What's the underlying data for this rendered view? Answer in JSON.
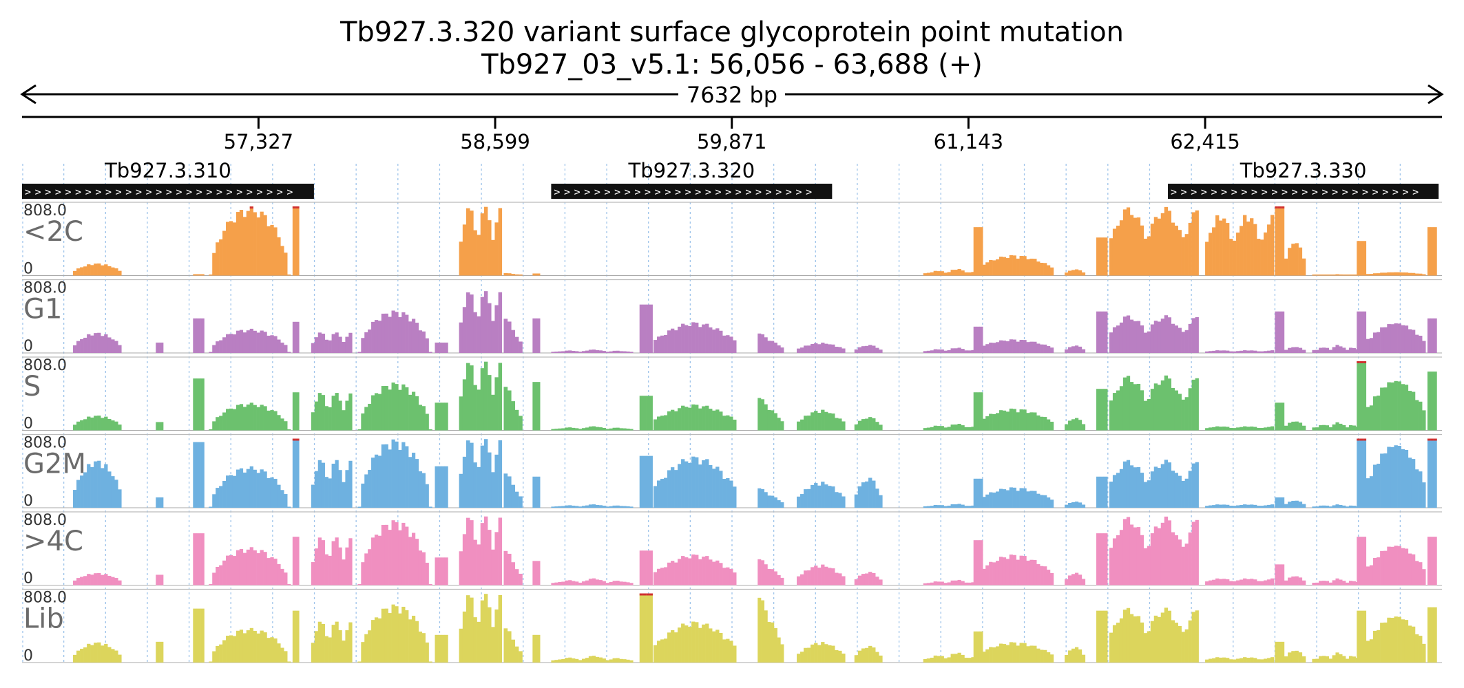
{
  "title": {
    "line1": "Tb927.3.320  variant surface glycoprotein  point mutation",
    "line2": "Tb927_03_v5.1: 56,056 - 63,688 (+)"
  },
  "span_label": "7632 bp",
  "chart_data": {
    "type": "area",
    "region": {
      "chromosome": "Tb927_03_v5.1",
      "start": 56056,
      "end": 63688,
      "strand": "+"
    },
    "x_ticks": [
      {
        "pos": 57327,
        "label": "57,327"
      },
      {
        "pos": 58599,
        "label": "58,599"
      },
      {
        "pos": 59871,
        "label": "59,871"
      },
      {
        "pos": 61143,
        "label": "61,143"
      },
      {
        "pos": 62415,
        "label": "62,415"
      }
    ],
    "genes": [
      {
        "name": "Tb927.3.310",
        "start": 56056,
        "end": 57625,
        "strand": "+"
      },
      {
        "name": "Tb927.3.320",
        "start": 58900,
        "end": 60410,
        "strand": "+"
      },
      {
        "name": "Tb927.3.330",
        "start": 62215,
        "end": 63670,
        "strand": "+"
      }
    ],
    "ylim": [
      0,
      808
    ],
    "ymax_label": "808.0",
    "ymin_label": "0",
    "grid": true,
    "segments": [
      {
        "start": 56330,
        "end": 56590,
        "shape": "mound"
      },
      {
        "start": 56775,
        "end": 56815,
        "shape": "flat"
      },
      {
        "start": 56975,
        "end": 57035,
        "shape": "flat"
      },
      {
        "start": 57060,
        "end": 57500,
        "shape": "peak"
      },
      {
        "start": 57510,
        "end": 57545,
        "shape": "flat"
      },
      {
        "start": 57610,
        "end": 57830,
        "shape": "bumps"
      },
      {
        "start": 57860,
        "end": 58260,
        "shape": "peak"
      },
      {
        "start": 58275,
        "end": 58345,
        "shape": "flat"
      },
      {
        "start": 58405,
        "end": 58635,
        "shape": "bumps"
      },
      {
        "start": 58645,
        "end": 58745,
        "shape": "decay"
      },
      {
        "start": 58800,
        "end": 58840,
        "shape": "flat"
      },
      {
        "start": 58900,
        "end": 59340,
        "shape": "low"
      },
      {
        "start": 59375,
        "end": 59445,
        "shape": "flat"
      },
      {
        "start": 59450,
        "end": 59895,
        "shape": "mound"
      },
      {
        "start": 60010,
        "end": 60150,
        "shape": "decay"
      },
      {
        "start": 60220,
        "end": 60480,
        "shape": "mound"
      },
      {
        "start": 60530,
        "end": 60680,
        "shape": "mound"
      },
      {
        "start": 60900,
        "end": 61250,
        "shape": "low"
      },
      {
        "start": 61170,
        "end": 61220,
        "shape": "flat"
      },
      {
        "start": 61180,
        "end": 61600,
        "shape": "mound"
      },
      {
        "start": 61660,
        "end": 61770,
        "shape": "mound"
      },
      {
        "start": 61830,
        "end": 61890,
        "shape": "flat"
      },
      {
        "start": 61900,
        "end": 62380,
        "shape": "bumps"
      },
      {
        "start": 62415,
        "end": 62785,
        "shape": "bumps"
      },
      {
        "start": 62790,
        "end": 62840,
        "shape": "flat"
      },
      {
        "start": 62840,
        "end": 62955,
        "shape": "mound"
      },
      {
        "start": 62990,
        "end": 63260,
        "shape": "low"
      },
      {
        "start": 63230,
        "end": 63280,
        "shape": "flat"
      },
      {
        "start": 63280,
        "end": 63600,
        "shape": "mound"
      },
      {
        "start": 63610,
        "end": 63660,
        "shape": "flat"
      }
    ],
    "series": [
      {
        "name": "<2C",
        "color": "#F5A04A",
        "levels": [
          0.18,
          0,
          0.02,
          1.0,
          1.0,
          0,
          0,
          0,
          1.0,
          0.04,
          0.03,
          0,
          0,
          0,
          0,
          0,
          0,
          0.1,
          0.7,
          0.3,
          0.1,
          0.55,
          1.0,
          0.9,
          1.0,
          0.55,
          0.02,
          0.5,
          0.05,
          0.7
        ]
      },
      {
        "name": "G1",
        "color": "#B97FC2",
        "levels": [
          0.3,
          0.15,
          0.5,
          0.35,
          0.45,
          0.3,
          0.62,
          0.15,
          0.9,
          0.55,
          0.5,
          0.05,
          0.7,
          0.45,
          0.3,
          0.15,
          0.12,
          0.08,
          0.38,
          0.2,
          0.12,
          0.6,
          0.55,
          0.04,
          0.6,
          0.1,
          0.12,
          0.6,
          0.45,
          0.5
        ]
      },
      {
        "name": "S",
        "color": "#6CC16E",
        "levels": [
          0.22,
          0.12,
          0.75,
          0.4,
          0.55,
          0.55,
          0.7,
          0.4,
          1.0,
          0.7,
          0.7,
          0.06,
          0.5,
          0.38,
          0.5,
          0.3,
          0.2,
          0.1,
          0.55,
          0.32,
          0.2,
          0.6,
          0.8,
          0.06,
          0.4,
          0.15,
          0.12,
          1.0,
          0.75,
          0.85
        ]
      },
      {
        "name": "G2M",
        "color": "#6EB1E0",
        "levels": [
          0.7,
          0.15,
          0.95,
          0.6,
          1.0,
          0.7,
          1.0,
          0.6,
          1.0,
          0.55,
          0.45,
          0.05,
          0.75,
          0.75,
          0.3,
          0.38,
          0.45,
          0.06,
          0.42,
          0.3,
          0.1,
          0.45,
          0.7,
          0.05,
          0.15,
          0.12,
          0.05,
          1.0,
          0.95,
          1.0
        ]
      },
      {
        "name": ">4C",
        "color": "#F08FC0",
        "levels": [
          0.18,
          0.15,
          0.75,
          0.55,
          0.7,
          0.7,
          0.95,
          0.4,
          1.0,
          0.55,
          0.35,
          0.1,
          0.5,
          0.45,
          0.4,
          0.3,
          0.2,
          0.08,
          0.65,
          0.45,
          0.2,
          0.75,
          1.0,
          0.1,
          0.3,
          0.15,
          0.1,
          0.7,
          0.6,
          0.7
        ]
      },
      {
        "name": "Lib",
        "color": "#DCD55C",
        "levels": [
          0.3,
          0.3,
          0.78,
          0.5,
          0.75,
          0.6,
          0.85,
          0.4,
          1.0,
          0.55,
          0.4,
          0.1,
          1.0,
          0.6,
          1.0,
          0.3,
          0.25,
          0.15,
          0.45,
          0.3,
          0.25,
          0.75,
          0.8,
          0.08,
          0.3,
          0.2,
          0.15,
          0.75,
          0.7,
          0.8
        ]
      }
    ]
  }
}
